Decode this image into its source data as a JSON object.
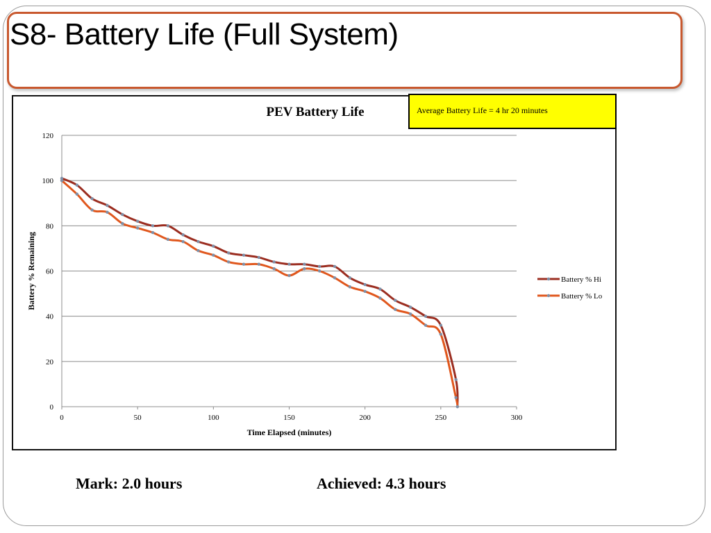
{
  "slide": {
    "title": "S8- Battery Life (Full System)",
    "callout": "Average Battery Life = 4 hr 20 minutes",
    "mark": "Mark: 2.0 hours",
    "achieved": "Achieved: 4.3 hours"
  },
  "colors": {
    "title_border": "#c8582e",
    "callout_bg": "#ffff00",
    "series_hi": "#9b2d20",
    "series_lo": "#e0571d",
    "marker": "#7f8fa6"
  },
  "chart_data": {
    "type": "line",
    "title": "PEV Battery Life",
    "xlabel": "Time Elapsed (minutes)",
    "ylabel": "Battery % Remaining",
    "xlim": [
      0,
      300
    ],
    "ylim": [
      0,
      120
    ],
    "xticks": [
      0,
      50,
      100,
      150,
      200,
      250,
      300
    ],
    "yticks": [
      0,
      20,
      40,
      60,
      80,
      100,
      120
    ],
    "grid": "horizontal",
    "legend": "right",
    "series": [
      {
        "name": "Battery % Hi",
        "color": "#9b2d20",
        "x": [
          0,
          10,
          20,
          30,
          40,
          50,
          60,
          70,
          80,
          90,
          100,
          110,
          120,
          130,
          140,
          150,
          160,
          170,
          180,
          190,
          200,
          210,
          220,
          230,
          240,
          250,
          260,
          261
        ],
        "y": [
          101,
          98,
          92,
          89,
          85,
          82,
          80,
          80,
          76,
          73,
          71,
          68,
          67,
          66,
          64,
          63,
          63,
          62,
          62,
          57,
          54,
          52,
          47,
          44,
          40,
          36,
          12,
          0
        ]
      },
      {
        "name": "Battery % Lo",
        "color": "#e0571d",
        "x": [
          0,
          10,
          20,
          30,
          40,
          50,
          60,
          70,
          80,
          90,
          100,
          110,
          120,
          130,
          140,
          150,
          160,
          170,
          180,
          190,
          200,
          210,
          220,
          230,
          240,
          250,
          260,
          261
        ],
        "y": [
          100,
          94,
          87,
          86,
          81,
          79,
          77,
          74,
          73,
          69,
          67,
          64,
          63,
          63,
          61,
          58,
          61,
          60,
          57,
          53,
          51,
          48,
          43,
          41,
          36,
          32,
          4,
          0
        ]
      }
    ]
  }
}
